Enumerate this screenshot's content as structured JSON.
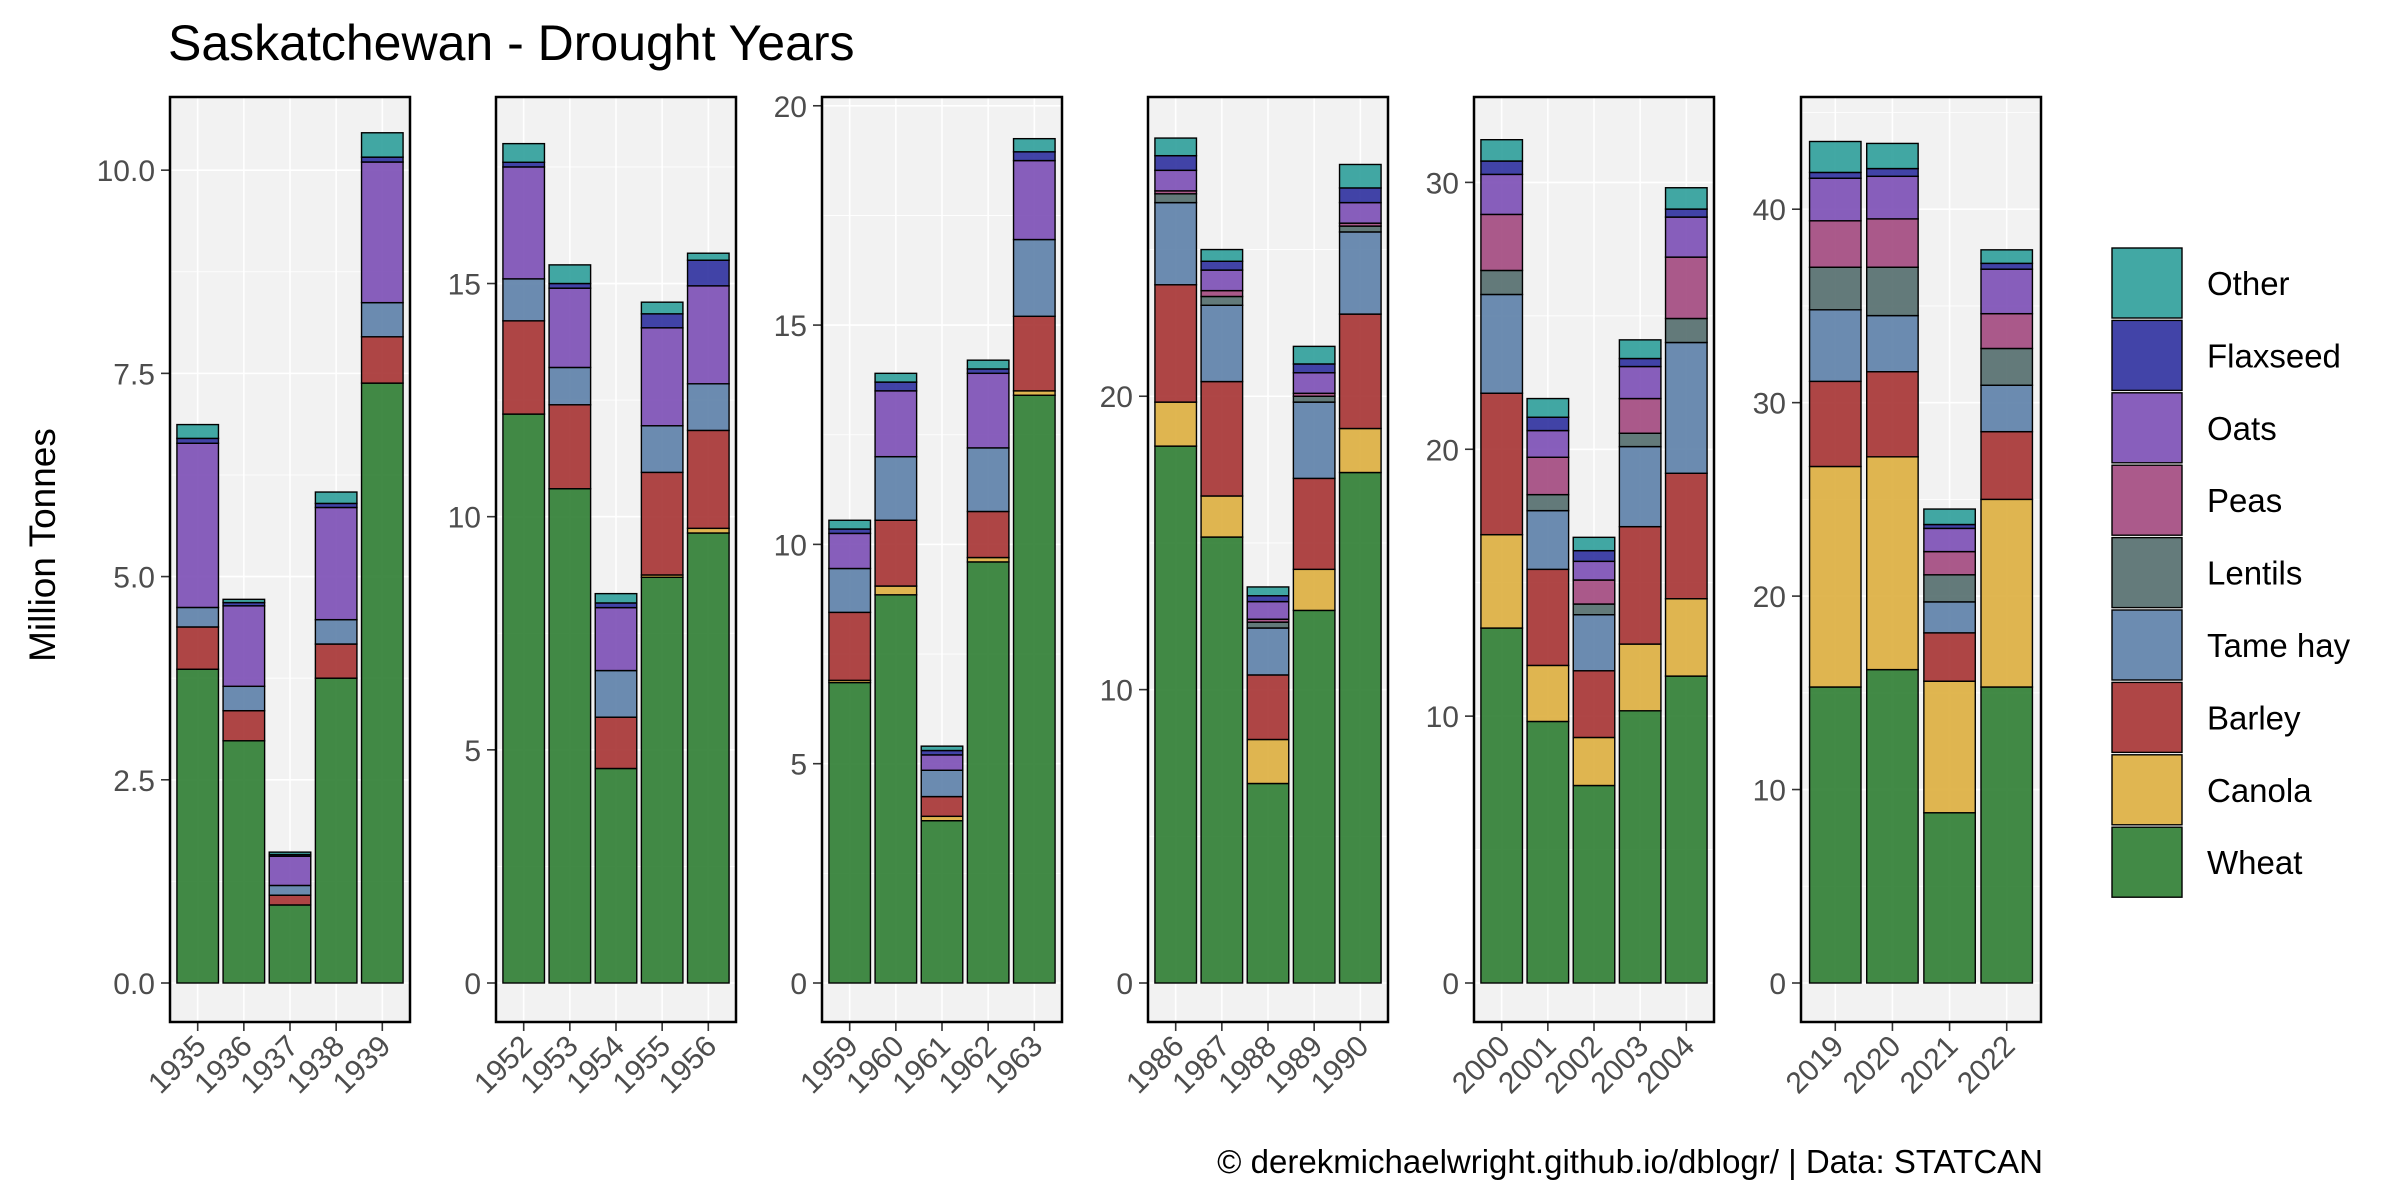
{
  "chart_data": {
    "type": "bar",
    "stacked": true,
    "title": "Saskatchewan - Drought Years",
    "ylabel": "Million Tonnes",
    "xlabel": "",
    "caption": "© derekmichaelwright.github.io/dblogr/ | Data: STATCAN",
    "legend_position": "right",
    "grid": true,
    "facet_scales": "free",
    "series": [
      {
        "name": "Wheat",
        "color": "#2E7D32"
      },
      {
        "name": "Canola",
        "color": "#DDAE3E"
      },
      {
        "name": "Barley",
        "color": "#A63232"
      },
      {
        "name": "Tame hay",
        "color": "#5C80A8"
      },
      {
        "name": "Lentils",
        "color": "#536D6D"
      },
      {
        "name": "Peas",
        "color": "#A2487E"
      },
      {
        "name": "Oats",
        "color": "#7B4EB5"
      },
      {
        "name": "Flaxseed",
        "color": "#2E309E"
      },
      {
        "name": "Other",
        "color": "#2E9E9A"
      }
    ],
    "legend_order": [
      "Other",
      "Flaxseed",
      "Oats",
      "Peas",
      "Lentils",
      "Tame hay",
      "Barley",
      "Canola",
      "Wheat"
    ],
    "panels": [
      {
        "ylim": [
          0,
          10.9
        ],
        "yticks": [
          0.0,
          2.5,
          5.0,
          7.5,
          10.0
        ],
        "ytick_labels": [
          "0.0",
          "2.5",
          "5.0",
          "7.5",
          "10.0"
        ],
        "bars": [
          {
            "year": "1935",
            "values": {
              "Wheat": 3.86,
              "Canola": 0,
              "Barley": 0.52,
              "Tame hay": 0.24,
              "Lentils": 0,
              "Peas": 0,
              "Oats": 2.02,
              "Flaxseed": 0.06,
              "Other": 0.17
            }
          },
          {
            "year": "1936",
            "values": {
              "Wheat": 2.98,
              "Canola": 0,
              "Barley": 0.37,
              "Tame hay": 0.3,
              "Lentils": 0,
              "Peas": 0,
              "Oats": 0.99,
              "Flaxseed": 0.04,
              "Other": 0.04
            }
          },
          {
            "year": "1937",
            "values": {
              "Wheat": 0.96,
              "Canola": 0,
              "Barley": 0.12,
              "Tame hay": 0.12,
              "Lentils": 0,
              "Peas": 0,
              "Oats": 0.36,
              "Flaxseed": 0.02,
              "Other": 0.03
            }
          },
          {
            "year": "1938",
            "values": {
              "Wheat": 3.75,
              "Canola": 0,
              "Barley": 0.42,
              "Tame hay": 0.3,
              "Lentils": 0,
              "Peas": 0,
              "Oats": 1.38,
              "Flaxseed": 0.05,
              "Other": 0.14
            }
          },
          {
            "year": "1939",
            "values": {
              "Wheat": 7.38,
              "Canola": 0,
              "Barley": 0.57,
              "Tame hay": 0.42,
              "Lentils": 0,
              "Peas": 0,
              "Oats": 1.73,
              "Flaxseed": 0.06,
              "Other": 0.3
            }
          }
        ]
      },
      {
        "ylim": [
          0,
          19.0
        ],
        "yticks": [
          0,
          5,
          10,
          15
        ],
        "ytick_labels": [
          "0",
          "5",
          "10",
          "15"
        ],
        "bars": [
          {
            "year": "1952",
            "values": {
              "Wheat": 12.2,
              "Canola": 0,
              "Barley": 2.0,
              "Tame hay": 0.9,
              "Lentils": 0,
              "Peas": 0,
              "Oats": 2.4,
              "Flaxseed": 0.1,
              "Other": 0.4
            }
          },
          {
            "year": "1953",
            "values": {
              "Wheat": 10.6,
              "Canola": 0,
              "Barley": 1.8,
              "Tame hay": 0.8,
              "Lentils": 0,
              "Peas": 0,
              "Oats": 1.7,
              "Flaxseed": 0.1,
              "Other": 0.4
            }
          },
          {
            "year": "1954",
            "values": {
              "Wheat": 4.6,
              "Canola": 0,
              "Barley": 1.1,
              "Tame hay": 1.0,
              "Lentils": 0,
              "Peas": 0,
              "Oats": 1.35,
              "Flaxseed": 0.1,
              "Other": 0.2
            }
          },
          {
            "year": "1955",
            "values": {
              "Wheat": 8.7,
              "Canola": 0.05,
              "Barley": 2.2,
              "Tame hay": 1.0,
              "Lentils": 0,
              "Peas": 0,
              "Oats": 2.1,
              "Flaxseed": 0.3,
              "Other": 0.25
            }
          },
          {
            "year": "1956",
            "values": {
              "Wheat": 9.65,
              "Canola": 0.1,
              "Barley": 2.1,
              "Tame hay": 1.0,
              "Lentils": 0,
              "Peas": 0,
              "Oats": 2.1,
              "Flaxseed": 0.55,
              "Other": 0.15
            }
          }
        ]
      },
      {
        "ylim": [
          0,
          20.2
        ],
        "yticks": [
          0,
          5,
          10,
          15,
          20
        ],
        "ytick_labels": [
          "0",
          "5",
          "10",
          "15",
          "20"
        ],
        "bars": [
          {
            "year": "1959",
            "values": {
              "Wheat": 6.85,
              "Canola": 0.05,
              "Barley": 1.55,
              "Tame hay": 1.0,
              "Lentils": 0,
              "Peas": 0,
              "Oats": 0.8,
              "Flaxseed": 0.1,
              "Other": 0.2
            }
          },
          {
            "year": "1960",
            "values": {
              "Wheat": 8.85,
              "Canola": 0.2,
              "Barley": 1.5,
              "Tame hay": 1.45,
              "Lentils": 0,
              "Peas": 0,
              "Oats": 1.5,
              "Flaxseed": 0.2,
              "Other": 0.2
            }
          },
          {
            "year": "1961",
            "values": {
              "Wheat": 3.7,
              "Canola": 0.1,
              "Barley": 0.45,
              "Tame hay": 0.6,
              "Lentils": 0,
              "Peas": 0,
              "Oats": 0.35,
              "Flaxseed": 0.1,
              "Other": 0.1
            }
          },
          {
            "year": "1962",
            "values": {
              "Wheat": 9.6,
              "Canola": 0.1,
              "Barley": 1.05,
              "Tame hay": 1.45,
              "Lentils": 0,
              "Peas": 0,
              "Oats": 1.7,
              "Flaxseed": 0.1,
              "Other": 0.2
            }
          },
          {
            "year": "1963",
            "values": {
              "Wheat": 13.4,
              "Canola": 0.1,
              "Barley": 1.7,
              "Tame hay": 1.75,
              "Lentils": 0,
              "Peas": 0,
              "Oats": 1.8,
              "Flaxseed": 0.2,
              "Other": 0.3
            }
          }
        ]
      },
      {
        "ylim": [
          0,
          30.2
        ],
        "yticks": [
          0,
          10,
          20
        ],
        "ytick_labels": [
          "0",
          "10",
          "20"
        ],
        "bars": [
          {
            "year": "1986",
            "values": {
              "Wheat": 18.3,
              "Canola": 1.5,
              "Barley": 4.0,
              "Tame hay": 2.8,
              "Lentils": 0.3,
              "Peas": 0.1,
              "Oats": 0.7,
              "Flaxseed": 0.5,
              "Other": 0.6
            }
          },
          {
            "year": "1987",
            "values": {
              "Wheat": 15.2,
              "Canola": 1.4,
              "Barley": 3.9,
              "Tame hay": 2.6,
              "Lentils": 0.3,
              "Peas": 0.2,
              "Oats": 0.7,
              "Flaxseed": 0.3,
              "Other": 0.4
            }
          },
          {
            "year": "1988",
            "values": {
              "Wheat": 6.8,
              "Canola": 1.5,
              "Barley": 2.2,
              "Tame hay": 1.6,
              "Lentils": 0.2,
              "Peas": 0.1,
              "Oats": 0.6,
              "Flaxseed": 0.2,
              "Other": 0.3
            }
          },
          {
            "year": "1989",
            "values": {
              "Wheat": 12.7,
              "Canola": 1.4,
              "Barley": 3.1,
              "Tame hay": 2.6,
              "Lentils": 0.2,
              "Peas": 0.1,
              "Oats": 0.7,
              "Flaxseed": 0.3,
              "Other": 0.6
            }
          },
          {
            "year": "1990",
            "values": {
              "Wheat": 17.4,
              "Canola": 1.5,
              "Barley": 3.9,
              "Tame hay": 2.8,
              "Lentils": 0.2,
              "Peas": 0.1,
              "Oats": 0.7,
              "Flaxseed": 0.5,
              "Other": 0.8
            }
          }
        ]
      },
      {
        "ylim": [
          0,
          33.2
        ],
        "yticks": [
          0,
          10,
          20,
          30
        ],
        "ytick_labels": [
          "0",
          "10",
          "20",
          "30"
        ],
        "bars": [
          {
            "year": "2000",
            "values": {
              "Wheat": 13.3,
              "Canola": 3.5,
              "Barley": 5.3,
              "Tame hay": 3.7,
              "Lentils": 0.9,
              "Peas": 2.1,
              "Oats": 1.5,
              "Flaxseed": 0.5,
              "Other": 0.8
            }
          },
          {
            "year": "2001",
            "values": {
              "Wheat": 9.8,
              "Canola": 2.1,
              "Barley": 3.6,
              "Tame hay": 2.2,
              "Lentils": 0.6,
              "Peas": 1.4,
              "Oats": 1.0,
              "Flaxseed": 0.5,
              "Other": 0.7
            }
          },
          {
            "year": "2002",
            "values": {
              "Wheat": 7.4,
              "Canola": 1.8,
              "Barley": 2.5,
              "Tame hay": 2.1,
              "Lentils": 0.4,
              "Peas": 0.9,
              "Oats": 0.7,
              "Flaxseed": 0.4,
              "Other": 0.5
            }
          },
          {
            "year": "2003",
            "values": {
              "Wheat": 10.2,
              "Canola": 2.5,
              "Barley": 4.4,
              "Tame hay": 3.0,
              "Lentils": 0.5,
              "Peas": 1.3,
              "Oats": 1.2,
              "Flaxseed": 0.3,
              "Other": 0.7
            }
          },
          {
            "year": "2004",
            "values": {
              "Wheat": 11.5,
              "Canola": 2.9,
              "Barley": 4.7,
              "Tame hay": 4.9,
              "Lentils": 0.9,
              "Peas": 2.3,
              "Oats": 1.5,
              "Flaxseed": 0.3,
              "Other": 0.8
            }
          }
        ]
      },
      {
        "ylim": [
          0,
          45.8
        ],
        "yticks": [
          0,
          10,
          20,
          30,
          40
        ],
        "ytick_labels": [
          "0",
          "10",
          "20",
          "30",
          "40"
        ],
        "bars": [
          {
            "year": "2019",
            "values": {
              "Wheat": 15.3,
              "Canola": 11.4,
              "Barley": 4.4,
              "Tame hay": 3.7,
              "Lentils": 2.2,
              "Peas": 2.4,
              "Oats": 2.2,
              "Flaxseed": 0.3,
              "Other": 1.6
            }
          },
          {
            "year": "2020",
            "values": {
              "Wheat": 16.2,
              "Canola": 11.0,
              "Barley": 4.4,
              "Tame hay": 2.9,
              "Lentils": 2.5,
              "Peas": 2.5,
              "Oats": 2.2,
              "Flaxseed": 0.4,
              "Other": 1.3
            }
          },
          {
            "year": "2021",
            "values": {
              "Wheat": 8.8,
              "Canola": 6.8,
              "Barley": 2.5,
              "Tame hay": 1.6,
              "Lentils": 1.4,
              "Peas": 1.2,
              "Oats": 1.2,
              "Flaxseed": 0.2,
              "Other": 0.8
            }
          },
          {
            "year": "2022",
            "values": {
              "Wheat": 15.3,
              "Canola": 9.7,
              "Barley": 3.5,
              "Tame hay": 2.4,
              "Lentils": 1.9,
              "Peas": 1.8,
              "Oats": 2.3,
              "Flaxseed": 0.3,
              "Other": 0.7
            }
          }
        ]
      }
    ]
  }
}
